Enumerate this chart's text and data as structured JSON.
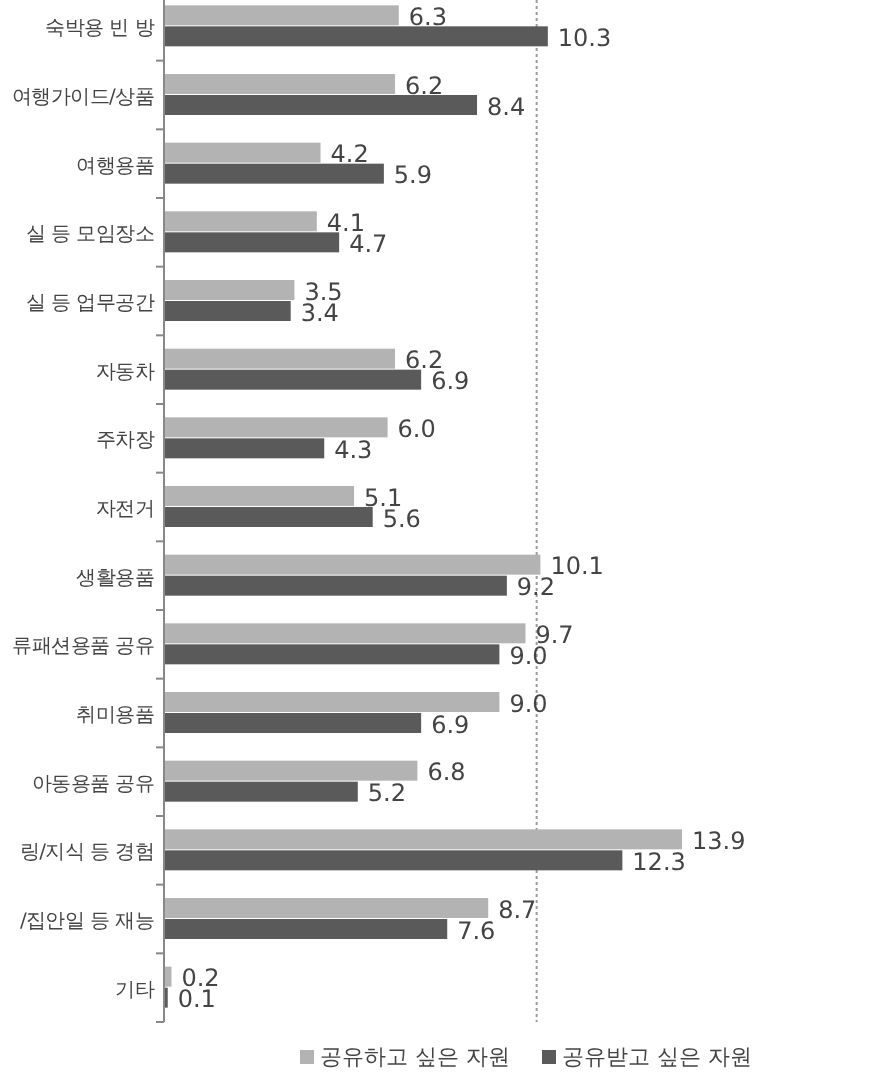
{
  "chart_data": {
    "type": "bar",
    "orientation": "horizontal",
    "categories": [
      "숙박용 빈 방",
      "여행가이드/상품",
      "여행용품",
      "실 등 모임장소",
      "실 등 업무공간",
      "자동차",
      "주차장",
      "자전거",
      "생활용품",
      "류패션용품 공유",
      "취미용품",
      "아동용품 공유",
      "링/지식 등 경험",
      "/집안일 등 재능",
      "기타"
    ],
    "series": [
      {
        "name": "공유하고 싶은 자원",
        "color": "#b3b3b3",
        "values": [
          6.3,
          6.2,
          4.2,
          4.1,
          3.5,
          6.2,
          6.0,
          5.1,
          10.1,
          9.7,
          9.0,
          6.8,
          13.9,
          8.7,
          0.2
        ],
        "value_labels": [
          "6.3",
          "6.2",
          "4.2",
          "4.1",
          "3.5",
          "6.2",
          "6.0",
          "5.1",
          "10.1",
          "9.7",
          "9.0",
          "6.8",
          "13.9",
          "8.7",
          "0.2"
        ]
      },
      {
        "name": "공유받고 싶은 자원",
        "color": "#5a5a5a",
        "values": [
          10.3,
          8.4,
          5.9,
          4.7,
          3.4,
          6.9,
          4.3,
          5.6,
          9.2,
          9.0,
          6.9,
          5.2,
          12.3,
          7.6,
          0.1
        ],
        "value_labels": [
          "10.3",
          "8.4",
          "5.9",
          "4.7",
          "3.4",
          "6.9",
          "4.3",
          "5.6",
          "9.2",
          "9.0",
          "6.9",
          "5.2",
          "12.3",
          "7.6",
          "0.1"
        ]
      }
    ],
    "ref_lines": [
      {
        "axis": "x",
        "value": 10,
        "color": "#9a9a9a",
        "line_style": "dotted"
      }
    ],
    "legend": "bottom"
  }
}
